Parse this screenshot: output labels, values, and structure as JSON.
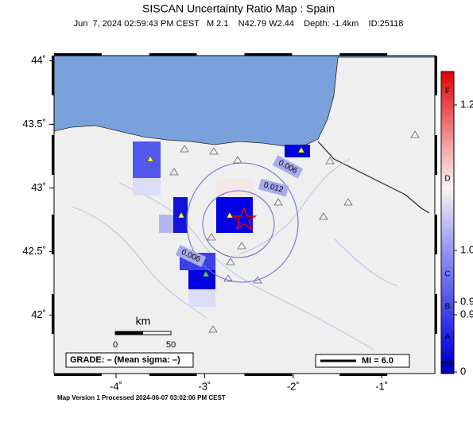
{
  "map": {
    "title": "SISCAN Uncertainty Ratio Map : Spain",
    "subtitle": "Jun  7, 2024 02:59:43 PM CEST   M 2.1    N42.79 W2.44    Depth: -1.4km    ID:25118",
    "lonlim": [
      -4.7,
      -0.4
    ],
    "latlim": [
      41.54,
      44.04
    ],
    "lon_ticks": [
      {
        "value": -4,
        "label": "-4˚"
      },
      {
        "value": -3,
        "label": "-3˚"
      },
      {
        "value": -2,
        "label": "-2˚"
      },
      {
        "value": -1,
        "label": "-1˚"
      }
    ],
    "lat_ticks": [
      {
        "value": 44,
        "label": "44˚"
      },
      {
        "value": 43.5,
        "label": "43.5˚"
      },
      {
        "value": 43,
        "label": "43˚"
      },
      {
        "value": 42.5,
        "label": "42.5˚"
      },
      {
        "value": 42,
        "label": "42˚"
      }
    ],
    "contour_labels": [
      "0.006",
      "0.012",
      "0.006"
    ],
    "scale": {
      "unit": "km",
      "labels": [
        "0",
        "50"
      ]
    },
    "grade": "GRADE: – (Mean sigma: –)",
    "intensity": "MI = 6.0",
    "footer": "Map Version 1 Processed 2024-06-07 03:02:06 PM CEST",
    "colorbar": {
      "ticks": [
        0,
        0.9,
        0.9,
        {
          "value": 1,
          "label": "1.0"
        },
        {
          "value": 1.2,
          "label": "1.2"
        }
      ],
      "grades": [
        "A",
        "B",
        "C",
        "D",
        "F"
      ]
    }
  }
}
